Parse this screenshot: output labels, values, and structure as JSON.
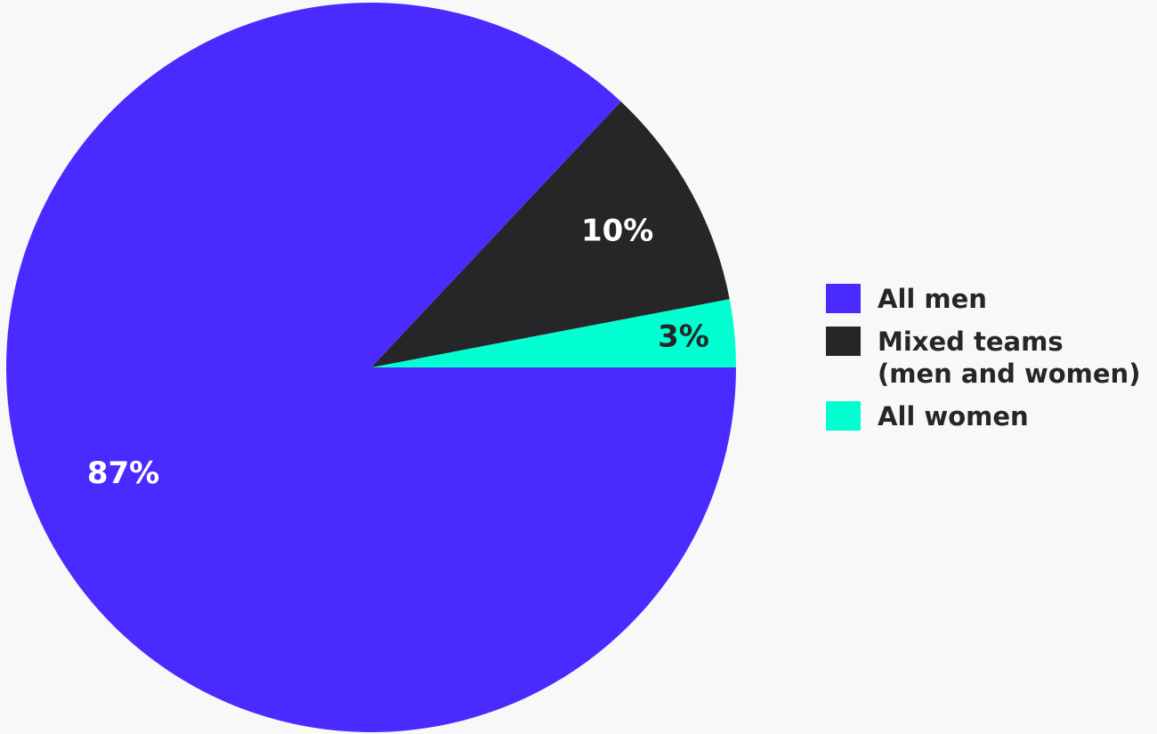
{
  "chart_data": {
    "type": "pie",
    "title": "",
    "slices": [
      {
        "label": "All men",
        "value": 87,
        "value_label": "87%",
        "color": "#4a2bff",
        "label_color": "#ffffff"
      },
      {
        "label": "Mixed teams\n(men and women)",
        "value": 10,
        "value_label": "10%",
        "color": "#262629",
        "label_color": "#ffffff"
      },
      {
        "label": "All women",
        "value": 3,
        "value_label": "3%",
        "color": "#00ffd1",
        "label_color": "#262629"
      }
    ],
    "legend": {
      "placement": "right",
      "items": [
        {
          "label_line1": "All men",
          "label_line2": "",
          "color": "#4a2bff"
        },
        {
          "label_line1": "Mixed teams",
          "label_line2": "(men and women)",
          "color": "#262629"
        },
        {
          "label_line1": "All women",
          "label_line2": "",
          "color": "#00ffd1"
        }
      ]
    }
  }
}
